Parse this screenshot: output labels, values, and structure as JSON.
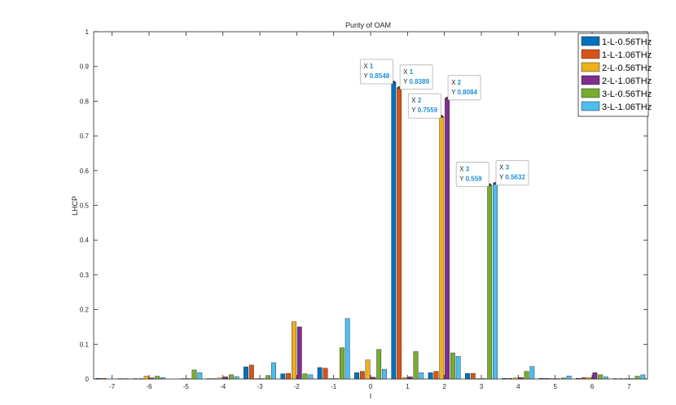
{
  "chart_data": {
    "type": "bar",
    "title": "Purity of OAM",
    "xlabel": "l",
    "ylabel": "LHCP",
    "categories": [
      "-7",
      "-6",
      "-5",
      "-4",
      "-3",
      "-2",
      "-1",
      "0",
      "1",
      "2",
      "3",
      "4",
      "5",
      "6",
      "7"
    ],
    "ylim": [
      0,
      1
    ],
    "yticks": [
      "0",
      "0.1",
      "0.2",
      "0.3",
      "0.4",
      "0.5",
      "0.6",
      "0.7",
      "0.8",
      "0.9",
      "1"
    ],
    "grid": false,
    "legend_position": "top-right",
    "series": [
      {
        "name": "1-L-0.56THz",
        "color": "#0072bd",
        "values": [
          0.002,
          0.001,
          0.0,
          0.001,
          0.035,
          0.015,
          0.033,
          0.018,
          0.8548,
          0.018,
          0.016,
          0.002,
          0.002,
          0.002,
          0.001
        ]
      },
      {
        "name": "1-L-1.06THz",
        "color": "#d95319",
        "values": [
          0.002,
          0.001,
          0.0,
          0.001,
          0.04,
          0.016,
          0.031,
          0.022,
          0.8389,
          0.022,
          0.016,
          0.002,
          0.002,
          0.004,
          0.001
        ]
      },
      {
        "name": "2-L-0.56THz",
        "color": "#edb120",
        "values": [
          0.0,
          0.008,
          0.001,
          0.003,
          0.001,
          0.165,
          0.001,
          0.055,
          0.004,
          0.7559,
          0.001,
          0.003,
          0.001,
          0.004,
          0.001
        ]
      },
      {
        "name": "2-L-1.06THz",
        "color": "#7e2f8e",
        "values": [
          0.0,
          0.003,
          0.001,
          0.006,
          0.001,
          0.15,
          0.001,
          0.005,
          0.006,
          0.8084,
          0.001,
          0.004,
          0.001,
          0.018,
          0.001
        ]
      },
      {
        "name": "3-L-0.56THz",
        "color": "#77ac30",
        "values": [
          0.001,
          0.008,
          0.026,
          0.012,
          0.01,
          0.015,
          0.09,
          0.085,
          0.079,
          0.075,
          0.559,
          0.022,
          0.003,
          0.012,
          0.008
        ]
      },
      {
        "name": "3-L-1.06THz",
        "color": "#4dbeee",
        "values": [
          0.001,
          0.004,
          0.018,
          0.007,
          0.047,
          0.012,
          0.174,
          0.028,
          0.018,
          0.065,
          0.5632,
          0.036,
          0.009,
          0.006,
          0.012
        ]
      }
    ],
    "annotations": [
      {
        "series": 0,
        "category": "1",
        "x_label": "X",
        "x_value": "1",
        "y_label": "Y",
        "y_value": "0.8548"
      },
      {
        "series": 1,
        "category": "1",
        "x_label": "X",
        "x_value": "1",
        "y_label": "Y",
        "y_value": "0.8389"
      },
      {
        "series": 2,
        "category": "2",
        "x_label": "X",
        "x_value": "2",
        "y_label": "Y",
        "y_value": "0.7559"
      },
      {
        "series": 3,
        "category": "2",
        "x_label": "X",
        "x_value": "2",
        "y_label": "Y",
        "y_value": "0.8084"
      },
      {
        "series": 4,
        "category": "3",
        "x_label": "X",
        "x_value": "3",
        "y_label": "Y",
        "y_value": "0.559"
      },
      {
        "series": 5,
        "category": "3",
        "x_label": "X",
        "x_value": "3",
        "y_label": "Y",
        "y_value": "0.5632"
      }
    ]
  }
}
